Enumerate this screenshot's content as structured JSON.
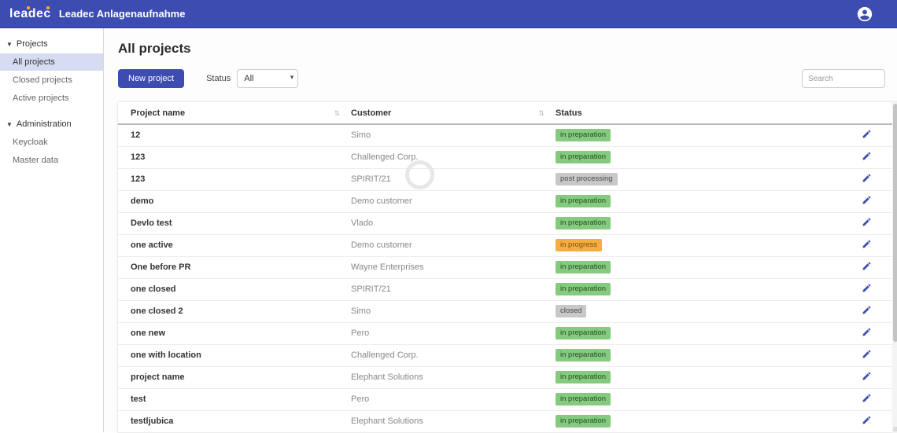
{
  "colors": {
    "accent": "#3c4cb1",
    "sidebar_active_bg": "#d8dcf2",
    "status_green_bg": "#85ca7e",
    "status_orange_bg": "#f5ad42",
    "status_gray_bg": "#c8c8c8",
    "logo_dot_orange": "#f5a623"
  },
  "header": {
    "logo": "leadec",
    "title": "Leadec Anlagenaufnahme",
    "user_icon": "account-circle-icon"
  },
  "sidebar": {
    "groups": [
      {
        "label": "Projects",
        "items": [
          {
            "label": "All projects",
            "active": true
          },
          {
            "label": "Closed projects",
            "active": false
          },
          {
            "label": "Active projects",
            "active": false
          }
        ]
      },
      {
        "label": "Administration",
        "items": [
          {
            "label": "Keycloak",
            "active": false
          },
          {
            "label": "Master data",
            "active": false
          }
        ]
      }
    ]
  },
  "main": {
    "page_title": "All projects",
    "toolbar": {
      "new_project_label": "New project",
      "status_label": "Status",
      "status_value": "All",
      "search_placeholder": "Search"
    },
    "table": {
      "columns": [
        "Project name",
        "Customer",
        "Status"
      ],
      "sortable_columns": [
        "Project name",
        "Customer"
      ],
      "rows": [
        {
          "name": "12",
          "customer": "Simo",
          "status": "in preparation",
          "status_type": "green"
        },
        {
          "name": "123",
          "customer": "Challenged Corp.",
          "status": "in preparation",
          "status_type": "green"
        },
        {
          "name": "123",
          "customer": "SPIRIT/21",
          "status": "post processing",
          "status_type": "gray"
        },
        {
          "name": "demo",
          "customer": "Demo customer",
          "status": "in preparation",
          "status_type": "green"
        },
        {
          "name": "Devlo test",
          "customer": "Vlado",
          "status": "in preparation",
          "status_type": "green"
        },
        {
          "name": "one active",
          "customer": "Demo customer",
          "status": "in progress",
          "status_type": "orange"
        },
        {
          "name": "One before PR",
          "customer": "Wayne Enterprises",
          "status": "in preparation",
          "status_type": "green"
        },
        {
          "name": "one closed",
          "customer": "SPIRIT/21",
          "status": "in preparation",
          "status_type": "green"
        },
        {
          "name": "one closed 2",
          "customer": "Simo",
          "status": "closed",
          "status_type": "gray"
        },
        {
          "name": "one new",
          "customer": "Pero",
          "status": "in preparation",
          "status_type": "green"
        },
        {
          "name": "one with location",
          "customer": "Challenged Corp.",
          "status": "in preparation",
          "status_type": "green"
        },
        {
          "name": "project name",
          "customer": "Elephant Solutions",
          "status": "in preparation",
          "status_type": "green"
        },
        {
          "name": "test",
          "customer": "Pero",
          "status": "in preparation",
          "status_type": "green"
        },
        {
          "name": "testljubica",
          "customer": "Elephant Solutions",
          "status": "in preparation",
          "status_type": "green"
        }
      ]
    }
  }
}
